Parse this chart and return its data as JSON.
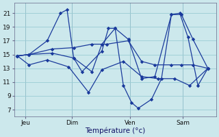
{
  "background_color": "#cce8ec",
  "grid_color": "#99ccd4",
  "line_color": "#1a3a9c",
  "xlabel": "Température (°c)",
  "yticks": [
    7,
    9,
    11,
    13,
    15,
    17,
    19,
    21
  ],
  "ylim": [
    6.0,
    22.5
  ],
  "xlim": [
    -0.2,
    12.0
  ],
  "day_labels": [
    "Jeu",
    "Dim",
    "Ven",
    "Sam"
  ],
  "day_positions": [
    0.5,
    3.3,
    6.8,
    10.0
  ],
  "s1_x": [
    0.0,
    0.7,
    1.8,
    2.6,
    3.0,
    3.4,
    3.9,
    5.1,
    5.5,
    5.9,
    6.4,
    6.9,
    7.3,
    8.1,
    8.7,
    9.3,
    9.8,
    10.3,
    10.9,
    11.5
  ],
  "s1_y": [
    14.8,
    15.0,
    17.0,
    21.0,
    21.5,
    14.5,
    12.5,
    15.5,
    18.8,
    18.8,
    10.5,
    8.0,
    7.2,
    8.5,
    11.5,
    20.8,
    21.0,
    17.5,
    10.5,
    13.0
  ],
  "s2_x": [
    0.0,
    0.7,
    2.1,
    3.4,
    4.5,
    5.4,
    6.7,
    7.5,
    8.3,
    9.3,
    9.9,
    10.6,
    11.5
  ],
  "s2_y": [
    14.8,
    15.0,
    15.8,
    16.0,
    16.5,
    16.5,
    17.0,
    14.0,
    13.5,
    13.5,
    13.5,
    13.5,
    13.0
  ],
  "s3_x": [
    0.0,
    0.7,
    2.1,
    3.4,
    4.5,
    5.1,
    5.9,
    6.7,
    7.5,
    8.3,
    9.3,
    9.9,
    10.6,
    11.5
  ],
  "s3_y": [
    14.8,
    15.0,
    15.2,
    14.5,
    12.5,
    16.5,
    18.8,
    17.2,
    11.5,
    11.8,
    20.8,
    20.8,
    17.2,
    13.0
  ],
  "s4_x": [
    0.0,
    0.7,
    1.8,
    3.1,
    4.3,
    5.1,
    6.4,
    7.5,
    8.5,
    9.5,
    10.4,
    11.5
  ],
  "s4_y": [
    14.8,
    13.5,
    14.2,
    13.2,
    9.5,
    12.8,
    14.0,
    11.8,
    11.5,
    11.5,
    10.5,
    13.0
  ]
}
